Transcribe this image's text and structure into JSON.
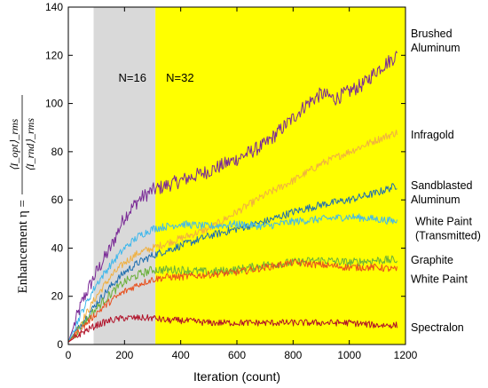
{
  "chart_data": {
    "type": "line",
    "xlabel": "Iteration (count)",
    "ylabel": "Enhancement η = ⟨I_opt⟩_rms / ⟨I_rnd⟩_rms",
    "ylabel_parts": {
      "prefix": "Enhancement η =",
      "numerator": "⟨I_opt⟩_rms",
      "denominator": "⟨I_rnd⟩_rms"
    },
    "xlim": [
      0,
      1200
    ],
    "ylim": [
      0,
      140
    ],
    "xticks": [
      "0",
      "200",
      "400",
      "600",
      "800",
      "1000",
      "1200"
    ],
    "yticks": [
      "0",
      "20",
      "40",
      "60",
      "80",
      "100",
      "120",
      "140"
    ],
    "grid": false,
    "regions": [
      {
        "label": "N=16",
        "x_start": 90,
        "x_end": 310,
        "color": "#d9d9d9"
      },
      {
        "label": "N=32",
        "x_start": 310,
        "x_end": 1200,
        "color": "#ffff00"
      }
    ],
    "series": [
      {
        "name": "Brushed Aluminum",
        "label_lines": [
          "Brushed",
          "Aluminum"
        ],
        "color": "#7a2a96",
        "x": [
          0,
          50,
          100,
          150,
          200,
          250,
          300,
          350,
          400,
          500,
          600,
          700,
          800,
          850,
          900,
          950,
          1000,
          1050,
          1100,
          1170
        ],
        "y": [
          1,
          18,
          30,
          40,
          53,
          60,
          64,
          66,
          68,
          72,
          77,
          83,
          94,
          100,
          104,
          102,
          105,
          108,
          114,
          120
        ]
      },
      {
        "name": "Infragold",
        "label_lines": [
          "Infragold"
        ],
        "color": "#f0b040",
        "x": [
          0,
          50,
          100,
          150,
          200,
          250,
          300,
          350,
          400,
          500,
          600,
          700,
          800,
          900,
          1000,
          1100,
          1170
        ],
        "y": [
          1,
          10,
          20,
          28,
          34,
          38,
          40,
          42,
          44,
          48,
          55,
          62,
          68,
          75,
          80,
          85,
          88
        ]
      },
      {
        "name": "Sandblasted Aluminum",
        "label_lines": [
          "Sandblasted",
          "Aluminum"
        ],
        "color": "#1f6fb0",
        "x": [
          0,
          50,
          100,
          150,
          200,
          250,
          300,
          350,
          400,
          500,
          600,
          700,
          800,
          900,
          1000,
          1100,
          1170
        ],
        "y": [
          1,
          9,
          17,
          24,
          30,
          34,
          37,
          39,
          41,
          45,
          48,
          51,
          55,
          58,
          60,
          63,
          66
        ]
      },
      {
        "name": "White Paint (Transmitted)",
        "label_lines": [
          "White Paint",
          "(Transmitted)"
        ],
        "color": "#40b8ec",
        "x": [
          0,
          50,
          100,
          150,
          200,
          250,
          300,
          350,
          400,
          500,
          600,
          700,
          800,
          900,
          1000,
          1100,
          1170
        ],
        "y": [
          1,
          14,
          25,
          33,
          40,
          45,
          48,
          49,
          50,
          49,
          50,
          49,
          51,
          52,
          53,
          52,
          51
        ]
      },
      {
        "name": "Graphite",
        "label_lines": [
          "Graphite"
        ],
        "color": "#6ab03a",
        "x": [
          0,
          50,
          100,
          150,
          200,
          250,
          300,
          350,
          400,
          500,
          600,
          700,
          800,
          900,
          1000,
          1100,
          1170
        ],
        "y": [
          1,
          8,
          15,
          21,
          26,
          29,
          31,
          31,
          31,
          30,
          31,
          33,
          34,
          35,
          34,
          35,
          35
        ]
      },
      {
        "name": "White Paint",
        "label_lines": [
          "White Paint"
        ],
        "color": "#e8501e",
        "x": [
          0,
          50,
          100,
          150,
          200,
          250,
          300,
          350,
          400,
          500,
          600,
          700,
          800,
          900,
          1000,
          1100,
          1170
        ],
        "y": [
          1,
          7,
          13,
          18,
          22,
          25,
          27,
          28,
          28,
          29,
          30,
          32,
          34,
          33,
          32,
          32,
          31
        ]
      },
      {
        "name": "Spectralon",
        "label_lines": [
          "Spectralon"
        ],
        "color": "#b01028",
        "x": [
          0,
          50,
          100,
          150,
          200,
          250,
          300,
          350,
          400,
          500,
          600,
          700,
          800,
          900,
          1000,
          1100,
          1170
        ],
        "y": [
          1,
          5,
          8,
          10,
          11,
          11,
          11,
          10,
          10,
          9,
          9,
          9,
          9,
          9,
          9,
          8,
          8
        ]
      }
    ],
    "legend_placement": "right of plot, labels aligned with line ends",
    "label_y_values": [
      126,
      87,
      63,
      48,
      35,
      27,
      7
    ]
  }
}
